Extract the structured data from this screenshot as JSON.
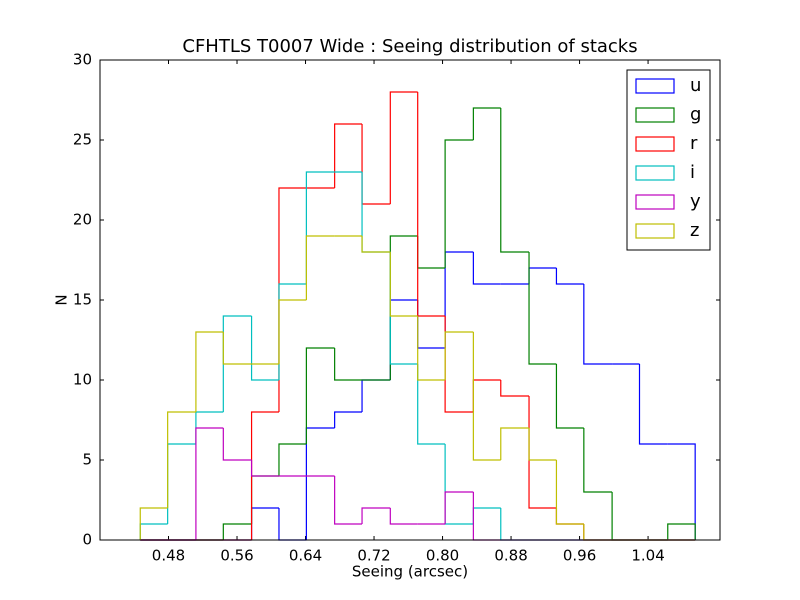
{
  "chart_data": {
    "type": "histogram",
    "histtype": "step",
    "title": "CFHTLS T0007 Wide : Seeing distribution of stacks",
    "x_label": "Seeing (arcsec)",
    "y_label": "N",
    "bins": [
      0.447,
      0.479,
      0.512,
      0.544,
      0.577,
      0.609,
      0.641,
      0.674,
      0.706,
      0.739,
      0.771,
      0.803,
      0.836,
      0.868,
      0.901,
      0.933,
      0.965,
      0.998,
      1.03,
      1.063,
      1.095
    ],
    "series": [
      {
        "name": "u",
        "color": "#0000ff",
        "values": [
          0,
          0,
          0,
          0,
          2,
          0,
          7,
          8,
          10,
          15,
          12,
          18,
          16,
          16,
          17,
          16,
          11,
          11,
          6,
          6
        ]
      },
      {
        "name": "g",
        "color": "#008000",
        "values": [
          0,
          0,
          0,
          1,
          4,
          6,
          12,
          10,
          10,
          19,
          17,
          25,
          27,
          18,
          11,
          7,
          3,
          0,
          0,
          1
        ]
      },
      {
        "name": "r",
        "color": "#ff0000",
        "values": [
          0,
          0,
          0,
          0,
          8,
          22,
          22,
          26,
          21,
          28,
          14,
          8,
          10,
          9,
          2,
          1,
          0,
          0,
          0,
          0
        ]
      },
      {
        "name": "i",
        "color": "#00bfbf",
        "values": [
          1,
          6,
          8,
          14,
          10,
          16,
          23,
          23,
          18,
          11,
          6,
          1,
          2,
          0,
          0,
          0,
          0,
          0,
          0,
          0
        ]
      },
      {
        "name": "y",
        "color": "#bf00bf",
        "values": [
          0,
          0,
          7,
          5,
          4,
          4,
          4,
          1,
          2,
          1,
          1,
          3,
          0,
          0,
          0,
          0,
          0,
          0,
          0,
          0
        ]
      },
      {
        "name": "z",
        "color": "#bfbf00",
        "values": [
          2,
          8,
          13,
          11,
          11,
          15,
          19,
          19,
          18,
          14,
          10,
          13,
          5,
          7,
          5,
          1,
          0,
          0,
          0,
          0
        ]
      }
    ],
    "xlim": [
      0.4,
      1.124
    ],
    "ylim": [
      0,
      30
    ],
    "xticks": [
      0.48,
      0.56,
      0.64,
      0.72,
      {
        "value": 0.8,
        "label": "0.80"
      },
      0.88,
      0.96,
      1.04
    ],
    "yticks": [
      0,
      5,
      10,
      15,
      20,
      25,
      30
    ],
    "legend": "upper right",
    "grid": false
  }
}
